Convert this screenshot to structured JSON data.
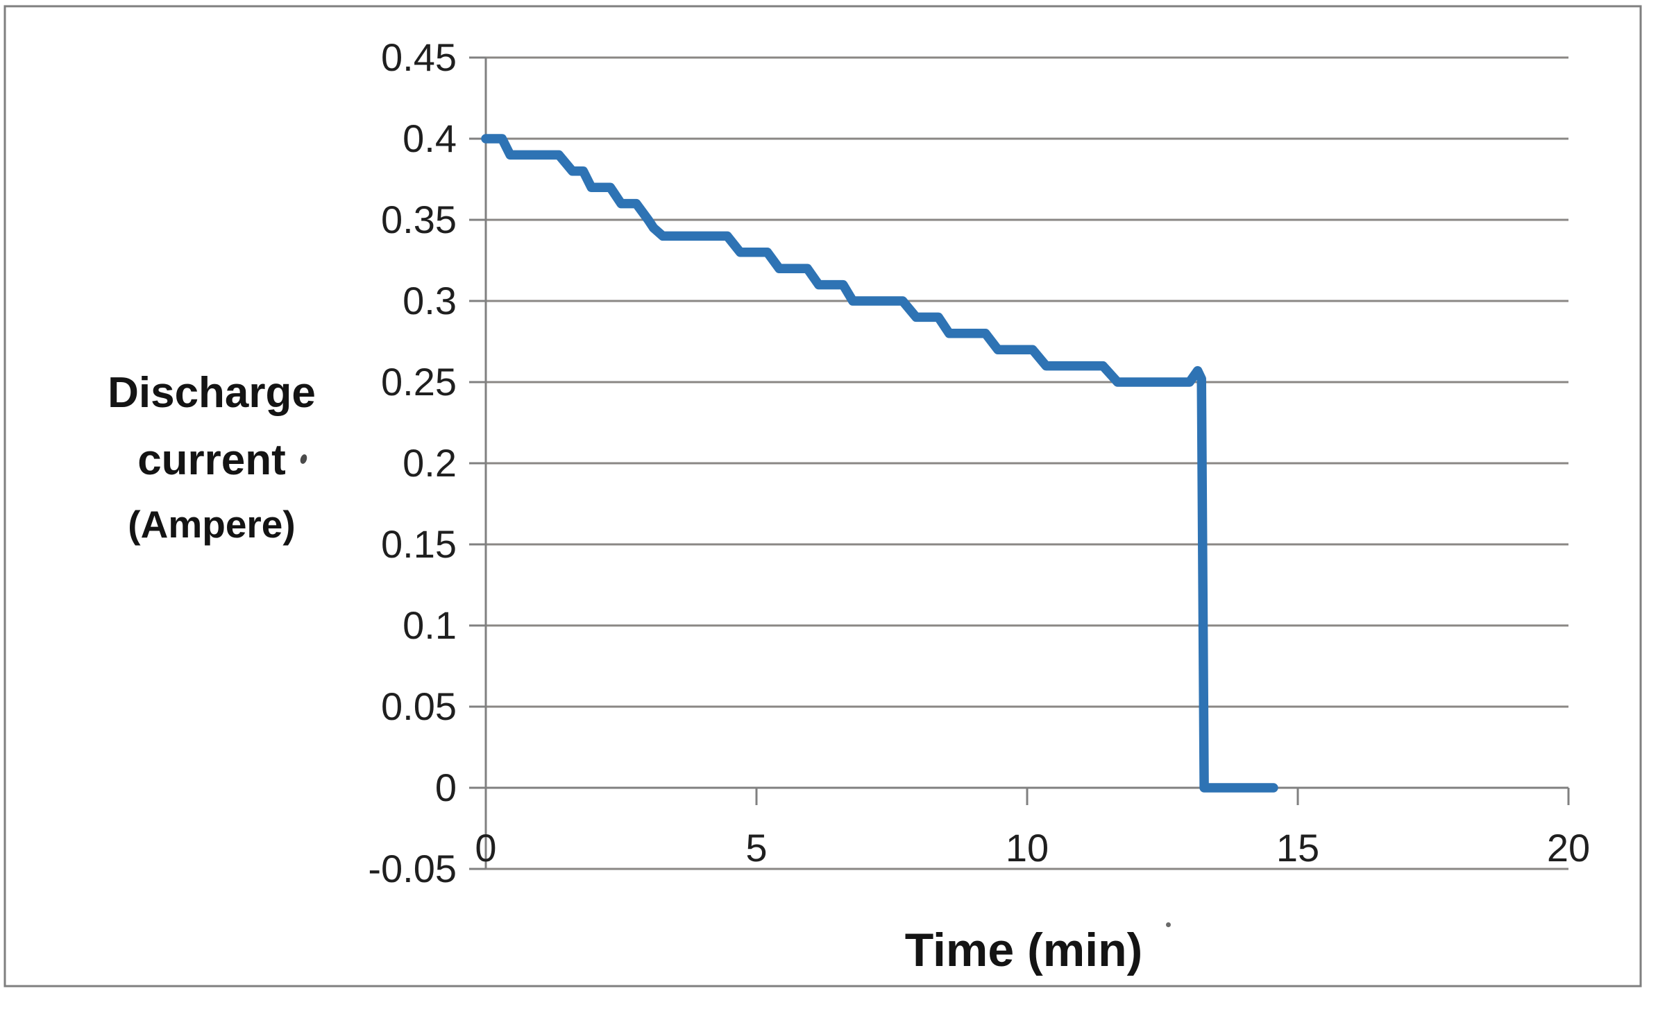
{
  "chart_data": {
    "type": "line",
    "title": "",
    "xlabel": "Time (min)",
    "ylabel_lines": [
      "Discharge",
      "current",
      "(Ampere)"
    ],
    "xlim": [
      0,
      20
    ],
    "ylim": [
      -0.05,
      0.45
    ],
    "grid": true,
    "legend": "none",
    "xticks": [
      {
        "label": "0",
        "value": 0
      },
      {
        "label": "5",
        "value": 5
      },
      {
        "label": "10",
        "value": 10
      },
      {
        "label": "15",
        "value": 15
      },
      {
        "label": "20",
        "value": 20
      }
    ],
    "yticks": [
      {
        "label": "0.45",
        "value": 0.45
      },
      {
        "label": "0.4",
        "value": 0.4
      },
      {
        "label": "0.35",
        "value": 0.35
      },
      {
        "label": "0.3",
        "value": 0.3
      },
      {
        "label": "0.25",
        "value": 0.25
      },
      {
        "label": "0.2",
        "value": 0.2
      },
      {
        "label": "0.15",
        "value": 0.15
      },
      {
        "label": "0.1",
        "value": 0.1
      },
      {
        "label": "0.05",
        "value": 0.05
      },
      {
        "label": "0",
        "value": 0.0
      },
      {
        "label": "-0.05",
        "value": -0.05
      }
    ],
    "series": [
      {
        "name": "Discharge current",
        "points": [
          [
            0.0,
            0.4
          ],
          [
            0.3,
            0.4
          ],
          [
            0.45,
            0.39
          ],
          [
            1.35,
            0.39
          ],
          [
            1.6,
            0.38
          ],
          [
            1.8,
            0.38
          ],
          [
            1.95,
            0.37
          ],
          [
            2.3,
            0.37
          ],
          [
            2.5,
            0.36
          ],
          [
            2.78,
            0.36
          ],
          [
            3.0,
            0.35
          ],
          [
            3.1,
            0.345
          ],
          [
            3.27,
            0.34
          ],
          [
            4.46,
            0.34
          ],
          [
            4.7,
            0.33
          ],
          [
            5.2,
            0.33
          ],
          [
            5.42,
            0.32
          ],
          [
            5.94,
            0.32
          ],
          [
            6.15,
            0.31
          ],
          [
            6.6,
            0.31
          ],
          [
            6.78,
            0.3
          ],
          [
            7.7,
            0.3
          ],
          [
            7.95,
            0.29
          ],
          [
            8.36,
            0.29
          ],
          [
            8.56,
            0.28
          ],
          [
            9.23,
            0.28
          ],
          [
            9.46,
            0.27
          ],
          [
            10.1,
            0.27
          ],
          [
            10.35,
            0.26
          ],
          [
            11.4,
            0.26
          ],
          [
            11.67,
            0.25
          ],
          [
            13.0,
            0.25
          ],
          [
            13.15,
            0.257
          ],
          [
            13.22,
            0.252
          ],
          [
            13.27,
            0.0
          ],
          [
            14.55,
            0.0
          ]
        ]
      }
    ],
    "colors": {
      "series_line": "#2e73b4",
      "gridline": "#8a8784",
      "axis_line": "#808080",
      "figure_border": "#7f7f7f",
      "tick_text": "#1f1f1f",
      "title_text": "#141414"
    }
  }
}
